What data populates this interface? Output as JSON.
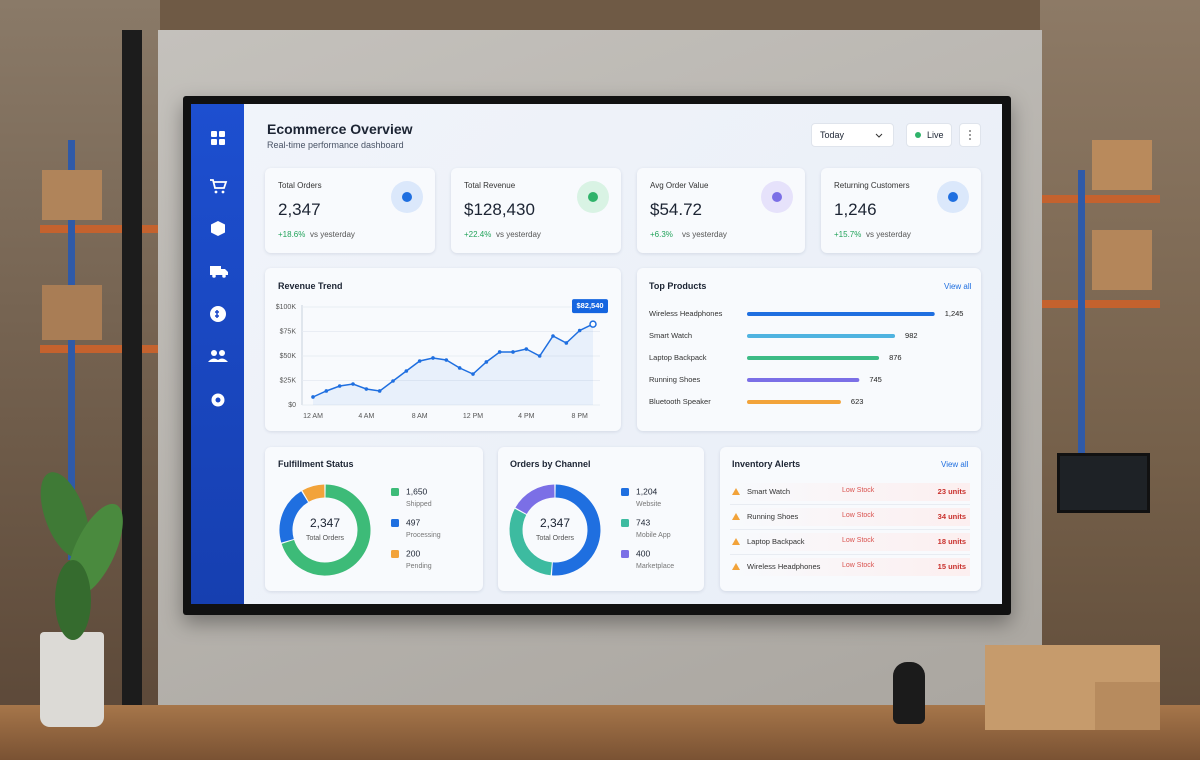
{
  "header": {
    "title": "Ecommerce Overview",
    "subtitle": "Real-time performance dashboard"
  },
  "controls": {
    "range": "Today",
    "status": "Live"
  },
  "kpis": [
    {
      "label": "Total Orders",
      "value": "2,347",
      "change": "+18.6%",
      "note": "vs yesterday"
    },
    {
      "label": "Total Revenue",
      "value": "$128,430",
      "change": "+22.4%",
      "note": "vs yesterday"
    },
    {
      "label": "Avg Order Value",
      "value": "$54.72",
      "change": "+6.3%",
      "note": "vs yesterday"
    },
    {
      "label": "Returning Customers",
      "value": "1,246",
      "change": "+15.7%",
      "note": "vs yesterday"
    }
  ],
  "chart_data": [
    {
      "type": "line",
      "title": "Revenue Trend",
      "color": "#1f6fe0",
      "x": [
        0,
        1,
        2,
        3,
        4,
        5,
        6,
        7,
        8,
        9,
        10,
        11,
        12,
        13,
        14,
        15,
        16,
        17,
        18,
        19,
        20,
        21
      ],
      "values": [
        8200,
        14300,
        19400,
        21400,
        16300,
        14300,
        24500,
        34700,
        44900,
        48000,
        45900,
        37800,
        31600,
        43900,
        54100,
        54100,
        57100,
        50000,
        70400,
        63300,
        76000,
        82540
      ],
      "value_labels": [
        null,
        null,
        null,
        null,
        null,
        null,
        null,
        null,
        null,
        null,
        null,
        null,
        null,
        null,
        null,
        null,
        null,
        null,
        null,
        null,
        null,
        "$82,540"
      ],
      "xlim": [
        0,
        21
      ],
      "xticks": [
        {
          "value": 0,
          "label": "12 AM"
        },
        {
          "value": 4,
          "label": "4 AM"
        },
        {
          "value": 8,
          "label": "8 AM"
        },
        {
          "value": 12,
          "label": "12 PM"
        },
        {
          "value": 16,
          "label": "4 PM"
        },
        {
          "value": 20,
          "label": "8 PM"
        }
      ],
      "ylim": [
        0,
        100000
      ],
      "yticks": [
        {
          "value": 0,
          "label": "$0"
        },
        {
          "value": 25000,
          "label": "$25K"
        },
        {
          "value": 50000,
          "label": "$50K"
        },
        {
          "value": 75000,
          "label": "$75K"
        },
        {
          "value": 100000,
          "label": "$100K"
        }
      ],
      "grid": true
    },
    {
      "type": "bar",
      "orientation": "horizontal",
      "title": "Top Products",
      "link": "View all",
      "categories": [
        "Wireless Headphones",
        "Smart Watch",
        "Laptop Backpack",
        "Running Shoes",
        "Bluetooth Speaker"
      ],
      "values": [
        1245,
        982,
        876,
        745,
        623
      ],
      "value_labels": [
        "1,245",
        "982",
        "876",
        "745",
        "623"
      ],
      "colors": [
        "#1f6fe0",
        "#4fb3e0",
        "#3dbb85",
        "#7b6fe6",
        "#f2a33a"
      ],
      "xlim": [
        0,
        1300
      ]
    },
    {
      "type": "pie",
      "title": "Fulfillment Status",
      "center_value": "2,347",
      "center_label": "Total Orders",
      "categories": [
        "Shipped",
        "Processing",
        "Pending"
      ],
      "values": [
        1650,
        497,
        200
      ],
      "value_labels": [
        "1,650",
        "497",
        "200"
      ],
      "colors": [
        "#3dbb78",
        "#1f6fe0",
        "#f2a33a"
      ]
    },
    {
      "type": "pie",
      "title": "Orders by Channel",
      "center_value": "2,347",
      "center_label": "Total Orders",
      "categories": [
        "Website",
        "Mobile App",
        "Marketplace"
      ],
      "values": [
        1204,
        743,
        400
      ],
      "value_labels": [
        "1,204",
        "743",
        "400"
      ],
      "colors": [
        "#1f6fe0",
        "#3dbba0",
        "#7b6fe6"
      ]
    }
  ],
  "inventory_alerts": {
    "title": "Inventory Alerts",
    "link": "View all",
    "rows": [
      {
        "item": "Smart Watch",
        "status": "Low Stock",
        "quantity": "23 units"
      },
      {
        "item": "Running Shoes",
        "status": "Low Stock",
        "quantity": "34 units"
      },
      {
        "item": "Laptop Backpack",
        "status": "Low Stock",
        "quantity": "18 units"
      },
      {
        "item": "Wireless Headphones",
        "status": "Low Stock",
        "quantity": "15 units"
      }
    ]
  }
}
